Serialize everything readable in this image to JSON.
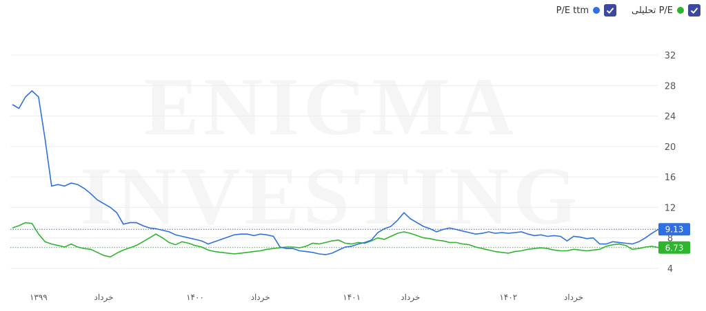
{
  "chart_data": {
    "type": "line",
    "watermark": [
      "ENIGMA",
      "INVESTING"
    ],
    "categories": [
      null,
      null,
      null,
      null,
      "۱۳۹۹",
      null,
      null,
      null,
      null,
      null,
      null,
      null,
      null,
      null,
      "خرداد",
      null,
      null,
      null,
      null,
      null,
      null,
      null,
      null,
      null,
      null,
      null,
      null,
      null,
      "۱۴۰۰",
      null,
      null,
      null,
      null,
      null,
      null,
      null,
      null,
      null,
      "خرداد",
      null,
      null,
      null,
      null,
      null,
      null,
      null,
      null,
      null,
      null,
      null,
      null,
      null,
      "۱۴۰۱",
      null,
      null,
      null,
      null,
      null,
      null,
      null,
      null,
      "خرداد",
      null,
      null,
      null,
      null,
      null,
      null,
      null,
      null,
      null,
      null,
      null,
      null,
      null,
      null,
      "۱۴۰۲",
      null,
      null,
      null,
      null,
      null,
      null,
      null,
      null,
      null,
      "خرداد",
      null,
      null,
      null,
      null,
      null,
      null,
      null,
      null,
      null,
      null,
      null,
      null,
      null
    ],
    "series": [
      {
        "name": "P/E تحلیلی",
        "color": "#2db52d",
        "values": [
          9.3,
          9.6,
          10,
          9.9,
          8.5,
          7.5,
          7.2,
          7,
          6.8,
          7.2,
          6.8,
          6.6,
          6.5,
          6.1,
          5.7,
          5.5,
          6,
          6.4,
          6.7,
          7,
          7.5,
          8,
          8.5,
          8,
          7.4,
          7.1,
          7.5,
          7.3,
          7,
          6.8,
          6.4,
          6.2,
          6.1,
          6,
          5.9,
          6,
          6.1,
          6.2,
          6.3,
          6.5,
          6.6,
          6.7,
          6.8,
          6.8,
          6.7,
          6.9,
          7.3,
          7.2,
          7.4,
          7.6,
          7.7,
          7.3,
          7.2,
          7.4,
          7.3,
          7.6,
          8,
          7.8,
          8.2,
          8.6,
          8.8,
          8.6,
          8.3,
          8,
          7.9,
          7.7,
          7.6,
          7.4,
          7.4,
          7.2,
          7.1,
          6.8,
          6.6,
          6.4,
          6.2,
          6.1,
          6,
          6.2,
          6.3,
          6.5,
          6.6,
          6.7,
          6.6,
          6.4,
          6.3,
          6.3,
          6.5,
          6.4,
          6.3,
          6.4,
          6.5,
          6.9,
          7.1,
          7.2,
          7,
          6.5,
          6.6,
          6.8,
          6.9,
          6.73
        ]
      },
      {
        "name": "P/E ttm",
        "color": "#2f6fe4",
        "values": [
          25.5,
          25,
          26.5,
          27.3,
          26.5,
          21,
          14.8,
          15,
          14.8,
          15.2,
          15,
          14.5,
          13.8,
          13,
          12.5,
          12,
          11.3,
          9.8,
          10,
          10,
          9.6,
          9.3,
          9.2,
          9,
          8.8,
          8.4,
          8.2,
          8,
          7.8,
          7.6,
          7.2,
          7.5,
          7.8,
          8.1,
          8.4,
          8.5,
          8.5,
          8.3,
          8.5,
          8.4,
          8.2,
          6.8,
          6.6,
          6.6,
          6.3,
          6.2,
          6.1,
          5.9,
          5.8,
          6,
          6.4,
          6.8,
          6.9,
          7.2,
          7.4,
          7.7,
          8.7,
          9.2,
          9.5,
          10.3,
          11.3,
          10.5,
          10,
          9.5,
          9.2,
          8.8,
          9.1,
          9.3,
          9.1,
          8.9,
          8.7,
          8.5,
          8.6,
          8.8,
          8.6,
          8.7,
          8.6,
          8.7,
          8.8,
          8.5,
          8.3,
          8.4,
          8.2,
          8.3,
          8.2,
          7.6,
          8.2,
          8.1,
          7.9,
          8,
          7.2,
          7.2,
          7.5,
          7.4,
          7.3,
          7.2,
          7.5,
          8,
          8.6,
          9.13
        ]
      }
    ],
    "ylim": [
      4,
      32
    ],
    "yticks": [
      4,
      8,
      12,
      16,
      20,
      24,
      28,
      32
    ],
    "grid": true
  }
}
